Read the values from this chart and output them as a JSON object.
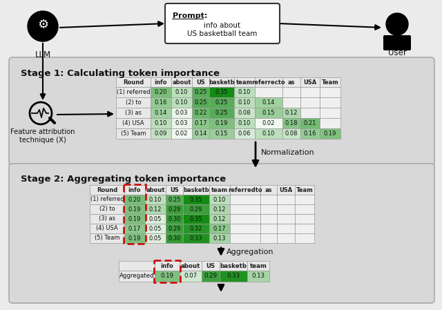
{
  "fig_width": 6.4,
  "fig_height": 4.49,
  "bg_color": "#ebebeb",
  "stage1_title": "Stage 1: Calculating token importance",
  "stage2_title": "Stage 2: Aggregating token importance",
  "llm_label": "LLM",
  "user_label": "User",
  "normalization_label": "Normalization",
  "aggregation_label": "Aggregation",
  "table1_headers": [
    "Round",
    "info",
    "about",
    "US",
    "basketb",
    "team",
    "referrecto",
    "as",
    "USA",
    "Team"
  ],
  "table1_rows": [
    [
      "(1) referred",
      "0.20",
      "0.10",
      "0.25",
      "0.35",
      "0.10",
      "",
      "",
      "",
      ""
    ],
    [
      "(2) to",
      "0.16",
      "0.10",
      "0.25",
      "0.25",
      "0.10",
      "0.14",
      "",
      "",
      ""
    ],
    [
      "(3) as",
      "0.14",
      "0.03",
      "0.22",
      "0.25",
      "0.08",
      "0.15",
      "0.12",
      "",
      ""
    ],
    [
      "(4) USA",
      "0.10",
      "0.03",
      "0.17",
      "0.19",
      "0.10",
      "0.02",
      "0.18",
      "0.21",
      ""
    ],
    [
      "(5) Team",
      "0.09",
      "0.02",
      "0.14",
      "0.15",
      "0.06",
      "0.10",
      "0.08",
      "0.16",
      "0.19"
    ]
  ],
  "table1_values": [
    [
      0.2,
      0.1,
      0.25,
      0.35,
      0.1,
      null,
      null,
      null,
      null
    ],
    [
      0.16,
      0.1,
      0.25,
      0.25,
      0.1,
      0.14,
      null,
      null,
      null
    ],
    [
      0.14,
      0.03,
      0.22,
      0.25,
      0.08,
      0.15,
      0.12,
      null,
      null
    ],
    [
      0.1,
      0.03,
      0.17,
      0.19,
      0.1,
      0.02,
      0.18,
      0.21,
      null
    ],
    [
      0.09,
      0.02,
      0.14,
      0.15,
      0.06,
      0.1,
      0.08,
      0.16,
      0.19
    ]
  ],
  "table2_headers": [
    "Round",
    "info",
    "about",
    "US",
    "basketb",
    "team",
    "referredto",
    "as",
    "USA",
    "Team"
  ],
  "table2_rows": [
    [
      "(1) referred",
      "0.20",
      "0.10",
      "0.25",
      "0.35",
      "0.10",
      "",
      "",
      "",
      ""
    ],
    [
      "(2) to",
      "0.19",
      "0.12",
      "0.29",
      "0.29",
      "0.12",
      "",
      "",
      "",
      ""
    ],
    [
      "(3) as",
      "0.19",
      "0.05",
      "0.30",
      "0.35",
      "0.12",
      "",
      "",
      "",
      ""
    ],
    [
      "(4) USA",
      "0.17",
      "0.05",
      "0.29",
      "0.32",
      "0.17",
      "",
      "",
      "",
      ""
    ],
    [
      "(5) Team",
      "0.19",
      "0.05",
      "0.30",
      "0.33",
      "0.13",
      "",
      "",
      "",
      ""
    ]
  ],
  "table2_values": [
    [
      0.2,
      0.1,
      0.25,
      0.35,
      0.1,
      null,
      null,
      null,
      null
    ],
    [
      0.19,
      0.12,
      0.29,
      0.29,
      0.12,
      null,
      null,
      null,
      null
    ],
    [
      0.19,
      0.05,
      0.3,
      0.35,
      0.12,
      null,
      null,
      null,
      null
    ],
    [
      0.17,
      0.05,
      0.29,
      0.32,
      0.17,
      null,
      null,
      null,
      null
    ],
    [
      0.19,
      0.05,
      0.3,
      0.33,
      0.13,
      null,
      null,
      null,
      null
    ]
  ],
  "table3_headers": [
    "",
    "info",
    "about",
    "US",
    "basketb",
    "team"
  ],
  "table3_rows": [
    [
      "Aggregated",
      "0.19",
      "0.07",
      "0.29",
      "0.33",
      "0.13"
    ]
  ],
  "table3_values": [
    [
      0.19,
      0.07,
      0.29,
      0.33,
      0.13
    ]
  ],
  "green_max": 0.35,
  "green_min": 0.0,
  "table_header_color": "#e8e8e8",
  "table_border_color": "#999999",
  "red_dashed_color": "#cc0000",
  "stage_box_color": "#d8d8d8",
  "stage_box_edge": "#aaaaaa"
}
